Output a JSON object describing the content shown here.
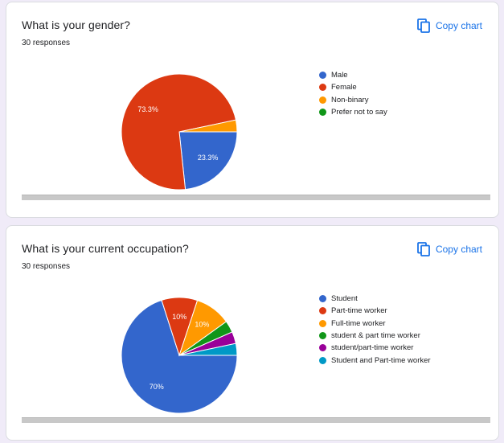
{
  "colors": {
    "background": "#f0ebf8",
    "card": "#ffffff",
    "accent": "#1a73e8"
  },
  "cards": [
    {
      "title": "What is your gender?",
      "responses": "30 responses",
      "copy_label": "Copy chart",
      "copy_icon": "copy-icon",
      "chart_data": {
        "type": "pie",
        "categories": [
          "Male",
          "Female",
          "Non-binary",
          "Prefer not to say"
        ],
        "values": [
          23.3,
          73.3,
          3.3,
          0
        ],
        "colors": [
          "#3366cc",
          "#dc3912",
          "#ff9900",
          "#109618"
        ],
        "slice_labels": [
          "23.3%",
          "73.3%",
          "",
          ""
        ],
        "legend_position": "right"
      }
    },
    {
      "title": "What is your current occupation?",
      "responses": "30 responses",
      "copy_label": "Copy chart",
      "copy_icon": "copy-icon",
      "chart_data": {
        "type": "pie",
        "categories": [
          "Student",
          "Part-time worker",
          "Full-time worker",
          "student & part time worker",
          "student/part-time worker",
          "Student and Part-time worker"
        ],
        "values": [
          70,
          10,
          10,
          3.3,
          3.3,
          3.3
        ],
        "colors": [
          "#3366cc",
          "#dc3912",
          "#ff9900",
          "#109618",
          "#990099",
          "#0099c6"
        ],
        "slice_labels": [
          "70%",
          "10%",
          "10%",
          "",
          "",
          ""
        ],
        "legend_position": "right"
      }
    }
  ]
}
